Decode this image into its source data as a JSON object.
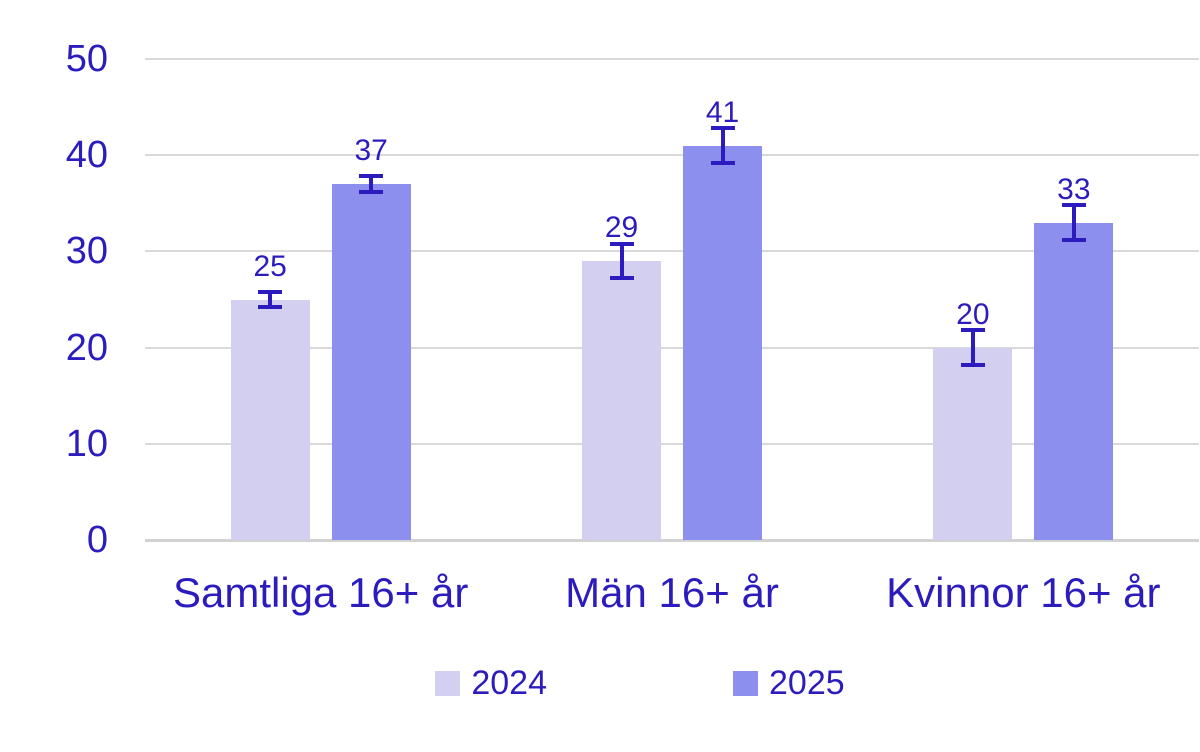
{
  "chart_data": {
    "type": "bar",
    "categories": [
      "Samtliga 16+ år",
      "Män 16+ år",
      "Kvinnor 16+ år"
    ],
    "series": [
      {
        "name": "2024",
        "color_key": "series_2024",
        "values": [
          25,
          29,
          20
        ],
        "error_low": [
          24,
          27,
          18
        ],
        "error_high": [
          26,
          31,
          22
        ]
      },
      {
        "name": "2025",
        "color_key": "series_2025",
        "values": [
          37,
          41,
          33
        ],
        "error_low": [
          36,
          39,
          31
        ],
        "error_high": [
          38,
          43,
          35
        ]
      }
    ],
    "y_ticks": [
      0,
      10,
      20,
      30,
      40,
      50
    ],
    "ylim": [
      0,
      50
    ],
    "title": "",
    "xlabel": "",
    "ylabel": "",
    "grid": true,
    "error_bars": true,
    "data_labels": true,
    "legend_position": "bottom"
  },
  "legend": {
    "items": [
      {
        "label": "2024"
      },
      {
        "label": "2025"
      }
    ]
  },
  "colors": {
    "series_2024": "#d3cff0",
    "series_2025": "#8c8fee",
    "text": "#2c1cbd",
    "error_bar": "#2c1cbd",
    "gridline": "#d9d9d9",
    "background": "#ffffff"
  }
}
